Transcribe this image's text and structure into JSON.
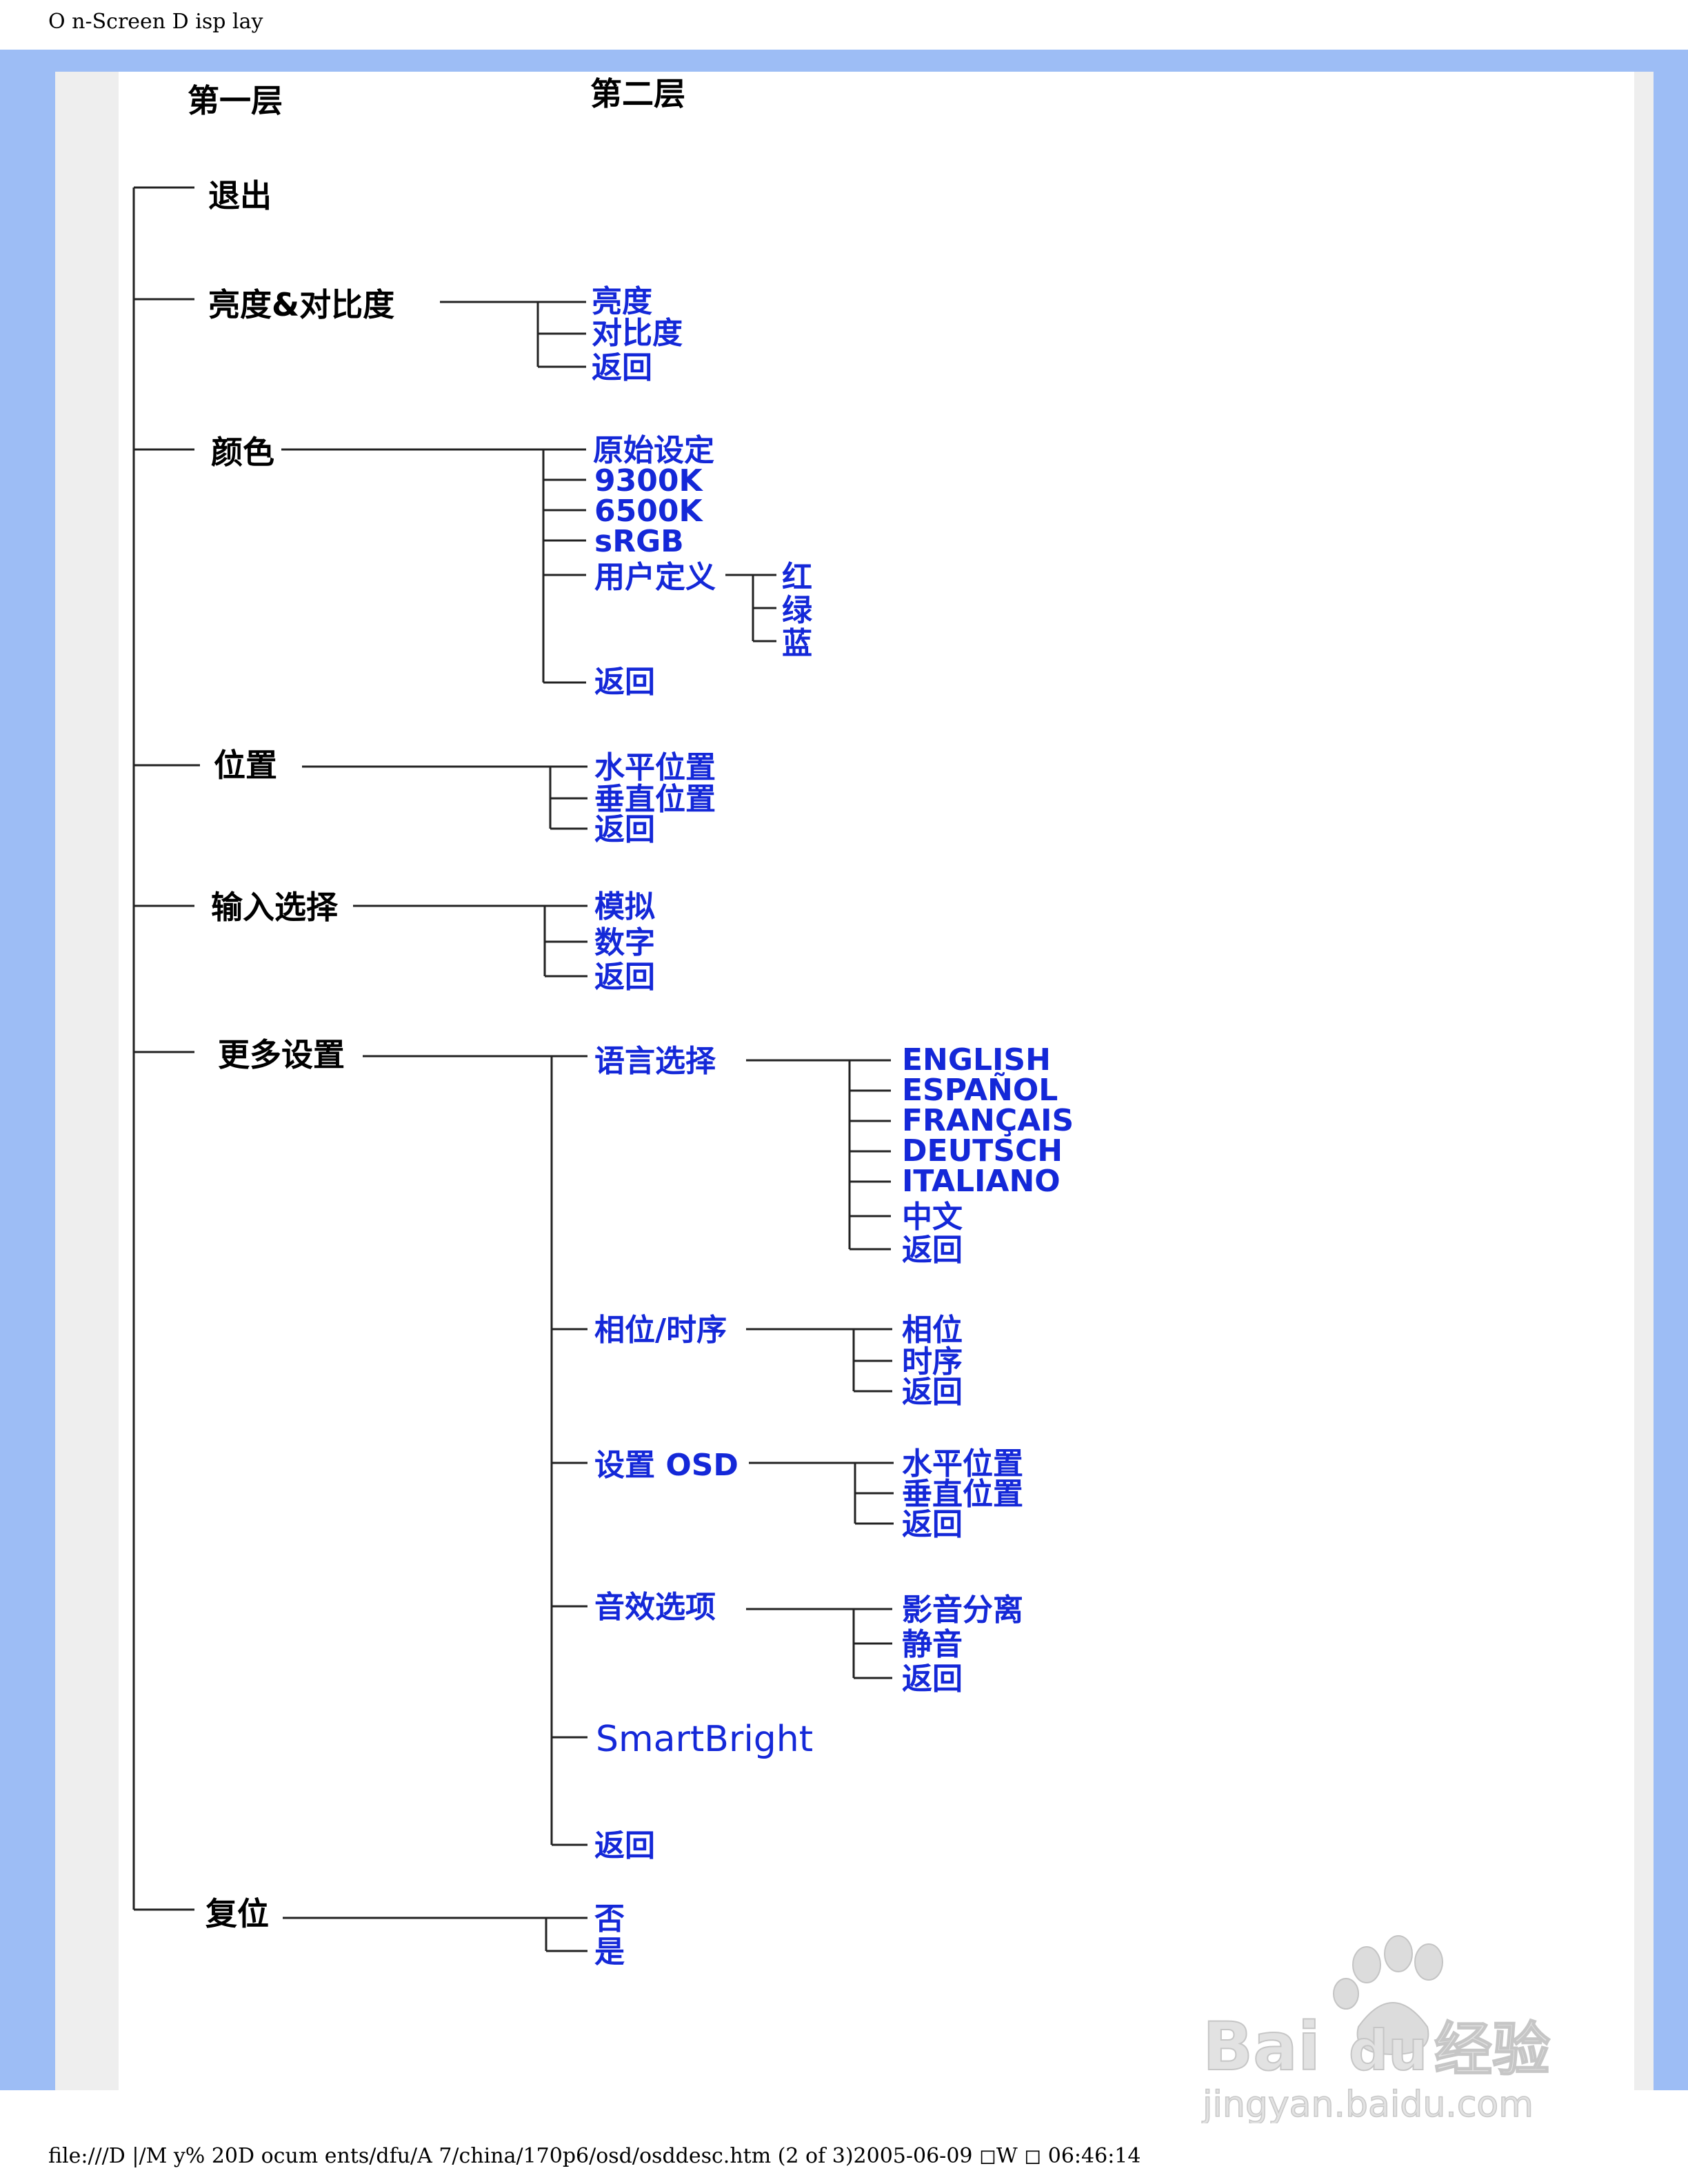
{
  "page_header": "O n-Screen D isp lay",
  "headers": {
    "level1": "第一层",
    "level2": "第二层"
  },
  "level1": {
    "exit": "退出",
    "brightness_contrast": "亮度&对比度",
    "color": "颜色",
    "position": "位置",
    "input_select": "输入选择",
    "more_settings": "更多设置",
    "reset": "复位"
  },
  "brightness_contrast": {
    "brightness": "亮度",
    "contrast": "对比度",
    "back": "返回"
  },
  "color": {
    "original": "原始设定",
    "k9300": "9300K",
    "k6500": "6500K",
    "srgb": "sRGB",
    "user_define": "用户定义",
    "back": "返回",
    "user": {
      "red": "红",
      "green": "绿",
      "blue": "蓝"
    }
  },
  "position": {
    "horizontal": "水平位置",
    "vertical": "垂直位置",
    "back": "返回"
  },
  "input_select": {
    "analog": "模拟",
    "digital": "数字",
    "back": "返回"
  },
  "more_settings": {
    "language": "语言选择",
    "languages": {
      "english": "ENGLISH",
      "espanol": "ESPAÑOL",
      "francais": "FRANÇAIS",
      "deutsch": "DEUTSCH",
      "italiano": "ITALIANO",
      "chinese": "中文",
      "back": "返回"
    },
    "phase_clock": "相位/时序",
    "phase_clock_items": {
      "phase": "相位",
      "clock": "时序",
      "back": "返回"
    },
    "osd_setting": "设置 OSD",
    "osd_items": {
      "horizontal": "水平位置",
      "vertical": "垂直位置",
      "back": "返回"
    },
    "audio": "音效选项",
    "audio_items": {
      "stereo": "影音分离",
      "mute": "静音",
      "back": "返回"
    },
    "smartbright": "SmartBright",
    "back": "返回"
  },
  "reset": {
    "no": "否",
    "yes": "是"
  },
  "watermark": {
    "brand_a": "Bai",
    "brand_b": "du",
    "brand_cn": "经验",
    "url": "jingyan.baidu.com"
  },
  "footer": "file:///D |/M y% 20D ocum ents/dfu/A 7/china/170p6/osd/osddesc.htm  (2 of 3)2005-06-09 ◻W ◻    06:46:14"
}
